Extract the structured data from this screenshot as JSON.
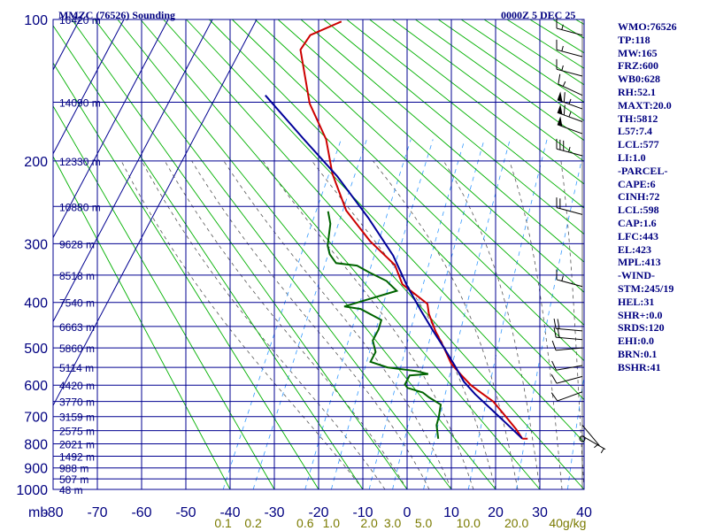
{
  "title": "MMZC (76526) Sounding",
  "date": "0000Z  5 DEC 25",
  "indices": [
    "WMO:76526",
    "TP:118",
    "MW:165",
    "FRZ:600",
    "WB0:628",
    "RH:52.1",
    "MAXT:20.0",
    "TH:5812",
    "L57:7.4",
    "LCL:577",
    "LI:1.0",
    "-PARCEL-",
    "CAPE:6",
    "CINH:72",
    "LCL:598",
    "CAP:1.6",
    "LFC:443",
    "EL:423",
    "MPL:413",
    "-WIND-",
    "STM:245/19",
    "HEL:31",
    "SHR+:0.0",
    "SRDS:120",
    "EHI:0.0",
    "BRN:0.1",
    "BSHR:41"
  ],
  "colors": {
    "grid": "#000090",
    "text": "#000080",
    "temperature": "#cc0000",
    "dewpoint": "#006400",
    "parcel": "#000099",
    "dry_adiabat": "#00b000",
    "moist_adiabat": "#555555",
    "mixing_ratio": "#3399ff",
    "mixing_label": "#7a7a00",
    "wind": "#000000"
  },
  "chart_data": {
    "type": "line",
    "subtype": "skew-t log-p sounding",
    "x_unit": "°C",
    "y_unit": "mb",
    "xlim": [
      -80,
      40
    ],
    "ylim": [
      1000,
      100
    ],
    "y_scale": "log",
    "x_axis_prefix": "mb",
    "pressure_ticks": [
      100,
      200,
      300,
      400,
      500,
      600,
      700,
      800,
      900,
      1000
    ],
    "temperature_ticks": [
      -80,
      -70,
      -60,
      -50,
      -40,
      -30,
      -20,
      -10,
      0,
      10,
      20,
      30,
      40
    ],
    "height_labels": [
      {
        "p": 100,
        "label": "16420 m"
      },
      {
        "p": 150,
        "label": "14090 m"
      },
      {
        "p": 200,
        "label": "12330 m"
      },
      {
        "p": 250,
        "label": "10880 m"
      },
      {
        "p": 300,
        "label": "9628 m"
      },
      {
        "p": 350,
        "label": "8518 m"
      },
      {
        "p": 400,
        "label": "7540 m"
      },
      {
        "p": 450,
        "label": "6663 m"
      },
      {
        "p": 500,
        "label": "5860 m"
      },
      {
        "p": 550,
        "label": "5114 m"
      },
      {
        "p": 600,
        "label": "4420 m"
      },
      {
        "p": 650,
        "label": "3770 m"
      },
      {
        "p": 700,
        "label": "3159 m"
      },
      {
        "p": 750,
        "label": "2575 m"
      },
      {
        "p": 800,
        "label": "2021 m"
      },
      {
        "p": 850,
        "label": "1492 m"
      },
      {
        "p": 900,
        "label": "988 m"
      },
      {
        "p": 950,
        "label": "507 m"
      },
      {
        "p": 1000,
        "label": "48 m"
      }
    ],
    "mixing_ratio_labels": [
      {
        "w": 0.1,
        "label": "0.1"
      },
      {
        "w": 0.2,
        "label": "0.2"
      },
      {
        "w": 0.6,
        "label": "0.6"
      },
      {
        "w": 1.0,
        "label": "1.0"
      },
      {
        "w": 2.0,
        "label": "2.0"
      },
      {
        "w": 3.0,
        "label": "3.0"
      },
      {
        "w": 5.0,
        "label": "5.0"
      },
      {
        "w": 10.0,
        "label": "10.0"
      },
      {
        "w": 20.0,
        "label": "20.0"
      },
      {
        "w": 40.0,
        "label": "40g/kg"
      }
    ],
    "series": [
      {
        "key": "temperature",
        "points": [
          [
            -70.6,
            101
          ],
          [
            -76,
            108
          ],
          [
            -76.5,
            116
          ],
          [
            -68,
            151
          ],
          [
            -60,
            180
          ],
          [
            -54.5,
            213
          ],
          [
            -47,
            255
          ],
          [
            -38,
            296
          ],
          [
            -29.5,
            333
          ],
          [
            -25.5,
            366
          ],
          [
            -17.5,
            403
          ],
          [
            -16,
            423
          ],
          [
            -12.5,
            460
          ],
          [
            -8.5,
            500
          ],
          [
            -5,
            540
          ],
          [
            -1.5,
            570
          ],
          [
            2,
            600
          ],
          [
            5.5,
            625
          ],
          [
            9,
            650
          ],
          [
            13,
            693
          ],
          [
            17.5,
            745
          ],
          [
            20,
            780
          ]
        ]
      },
      {
        "key": "dewpoint",
        "points": [
          [
            -51,
            256
          ],
          [
            -49,
            272
          ],
          [
            -47,
            303
          ],
          [
            -45.5,
            316
          ],
          [
            -43,
            330
          ],
          [
            -38,
            334
          ],
          [
            -34.5,
            345
          ],
          [
            -29.5,
            360
          ],
          [
            -26,
            378
          ],
          [
            -36,
            408
          ],
          [
            -32,
            413
          ],
          [
            -26,
            436
          ],
          [
            -25.5,
            457
          ],
          [
            -25.5,
            482
          ],
          [
            -23.5,
            510
          ],
          [
            -23.5,
            535
          ],
          [
            -19,
            550
          ],
          [
            -12,
            560
          ],
          [
            -9,
            568
          ],
          [
            -13,
            572
          ],
          [
            -13,
            598
          ],
          [
            -12,
            608
          ],
          [
            -8,
            622
          ],
          [
            -6,
            637
          ],
          [
            -2.5,
            660
          ],
          [
            -1.5,
            700
          ],
          [
            -1,
            730
          ],
          [
            1,
            780
          ]
        ]
      },
      {
        "key": "parcel",
        "points": [
          [
            -79,
            145
          ],
          [
            -65,
            180
          ],
          [
            -53,
            216
          ],
          [
            -41,
            265
          ],
          [
            -31,
            318
          ],
          [
            -24,
            371
          ],
          [
            -18,
            418
          ],
          [
            -13,
            460
          ],
          [
            -8.5,
            500
          ],
          [
            -4,
            545
          ],
          [
            0,
            590
          ],
          [
            4,
            627
          ],
          [
            10,
            680
          ],
          [
            15,
            728
          ],
          [
            20,
            780
          ]
        ]
      }
    ],
    "wind_barbs": [
      {
        "p": 108,
        "dir": 285,
        "spd": 15
      },
      {
        "p": 120,
        "dir": 285,
        "spd": 15
      },
      {
        "p": 132,
        "dir": 285,
        "spd": 15
      },
      {
        "p": 145,
        "dir": 295,
        "spd": 15
      },
      {
        "p": 155,
        "dir": 290,
        "spd": 65
      },
      {
        "p": 165,
        "dir": 290,
        "spd": 65
      },
      {
        "p": 175,
        "dir": 290,
        "spd": 50
      },
      {
        "p": 195,
        "dir": 285,
        "spd": 35
      },
      {
        "p": 260,
        "dir": 285,
        "spd": 20
      },
      {
        "p": 370,
        "dir": 285,
        "spd": 15
      },
      {
        "p": 460,
        "dir": 275,
        "spd": 20
      },
      {
        "p": 480,
        "dir": 275,
        "spd": 20
      },
      {
        "p": 500,
        "dir": 265,
        "spd": 10
      },
      {
        "p": 545,
        "dir": 260,
        "spd": 10
      },
      {
        "p": 575,
        "dir": 255,
        "spd": 10
      },
      {
        "p": 620,
        "dir": 250,
        "spd": 10
      },
      {
        "p": 730,
        "dir": 140,
        "spd": 5
      },
      {
        "p": 770,
        "dir": 120,
        "spd": 5
      }
    ]
  }
}
